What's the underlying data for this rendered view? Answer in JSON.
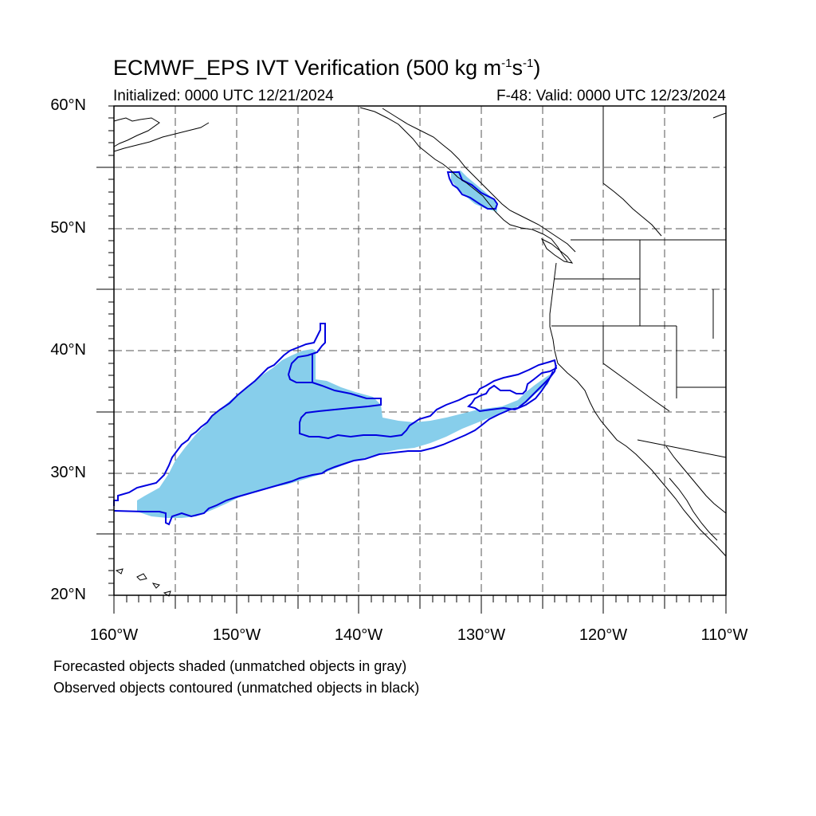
{
  "title": {
    "main": "ECMWF_EPS IVT Verification (500 kg m",
    "sup1": "-1",
    "mid": "s",
    "sup2": "-1",
    "end": ")"
  },
  "subtitle_left": "Initialized: 0000 UTC 12/21/2024",
  "subtitle_right": "F-48: Valid: 0000 UTC 12/23/2024",
  "lat_labels": [
    "60°N",
    "50°N",
    "40°N",
    "30°N",
    "20°N"
  ],
  "lon_labels": [
    "160°W",
    "150°W",
    "140°W",
    "130°W",
    "120°W",
    "110°W"
  ],
  "notes": [
    "Forecasted objects shaded (unmatched objects in gray)",
    "Observed objects contoured (unmatched objects in black)"
  ],
  "colors": {
    "forecast_fill": "#87ceeb",
    "observed_contour": "#0000e0",
    "coast": "#000000",
    "grid": "#555555"
  },
  "map_extent": {
    "lon": [
      -160,
      -110
    ],
    "lat": [
      20,
      60
    ]
  }
}
